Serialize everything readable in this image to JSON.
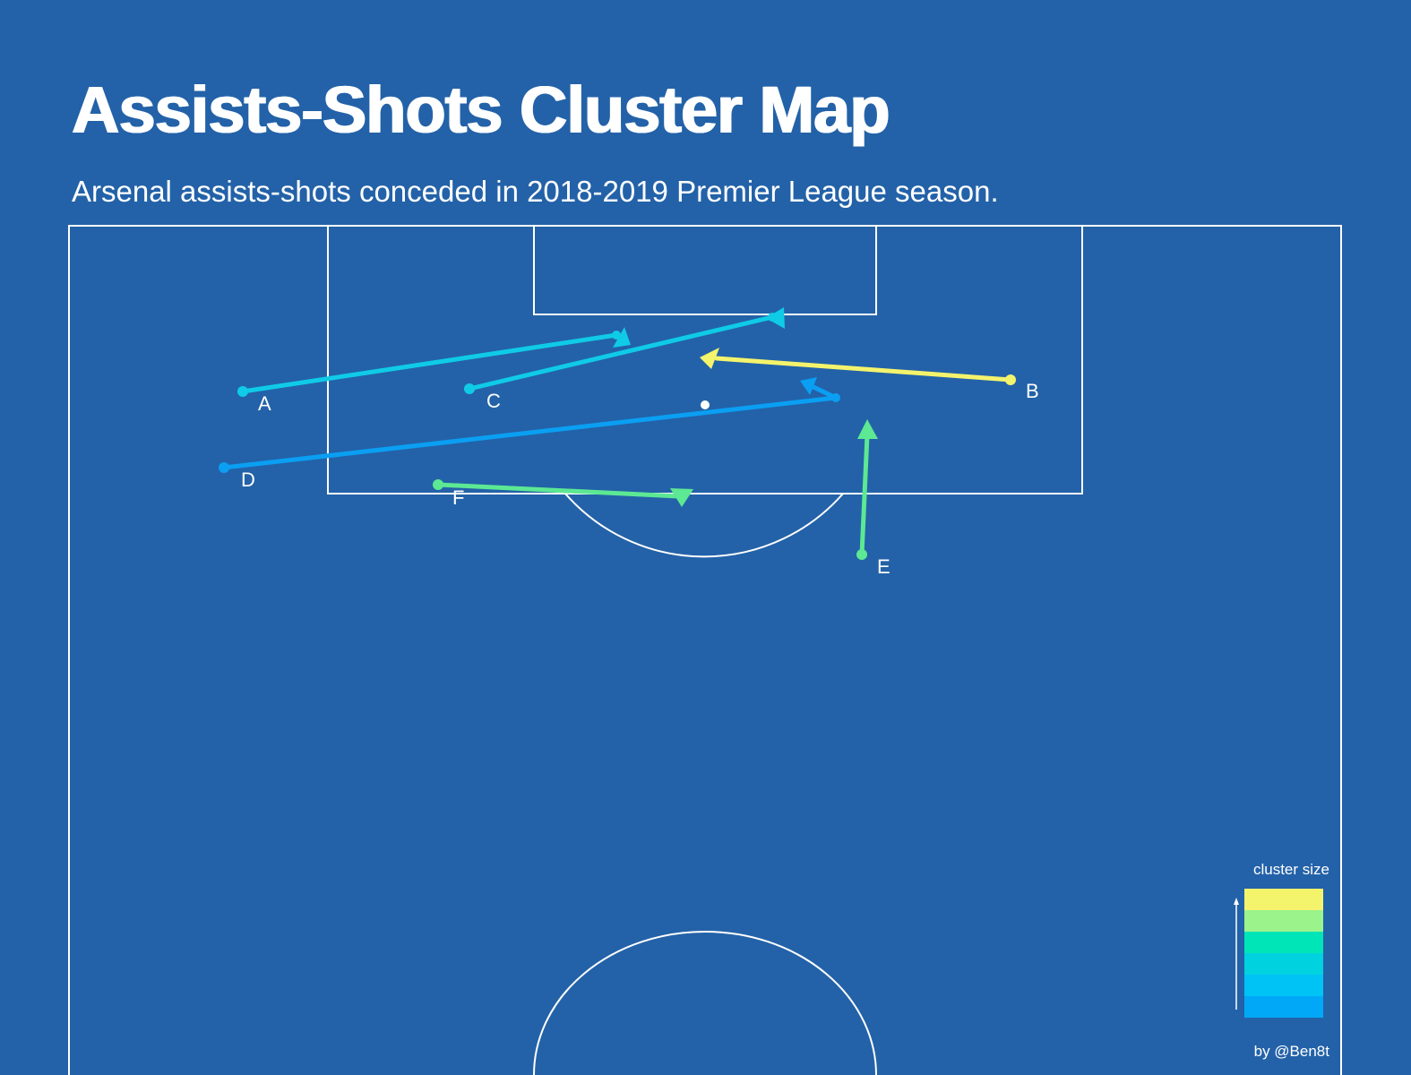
{
  "header": {
    "title": "Assists-Shots Cluster Map",
    "subtitle": "Arsenal assists-shots conceded in 2018-2019 Premier League season."
  },
  "clusters": [
    {
      "label": "A",
      "color": "#0fcbe6",
      "rank": 3
    },
    {
      "label": "B",
      "color": "#f4f36c",
      "rank": 6
    },
    {
      "label": "C",
      "color": "#0fcbe6",
      "rank": 3
    },
    {
      "label": "D",
      "color": "#0a9ff2",
      "rank": 1
    },
    {
      "label": "E",
      "color": "#5de893",
      "rank": 5
    },
    {
      "label": "F",
      "color": "#5de893",
      "rank": 5
    }
  ],
  "legend": {
    "title": "cluster size",
    "colors": [
      "#f4f36c",
      "#9bf38b",
      "#00e5b8",
      "#00d2e0",
      "#00c3f5",
      "#00a8f7"
    ]
  },
  "credit": "by @Ben8t",
  "colors": {
    "background": "#2362a8",
    "lines": "#ffffff"
  }
}
